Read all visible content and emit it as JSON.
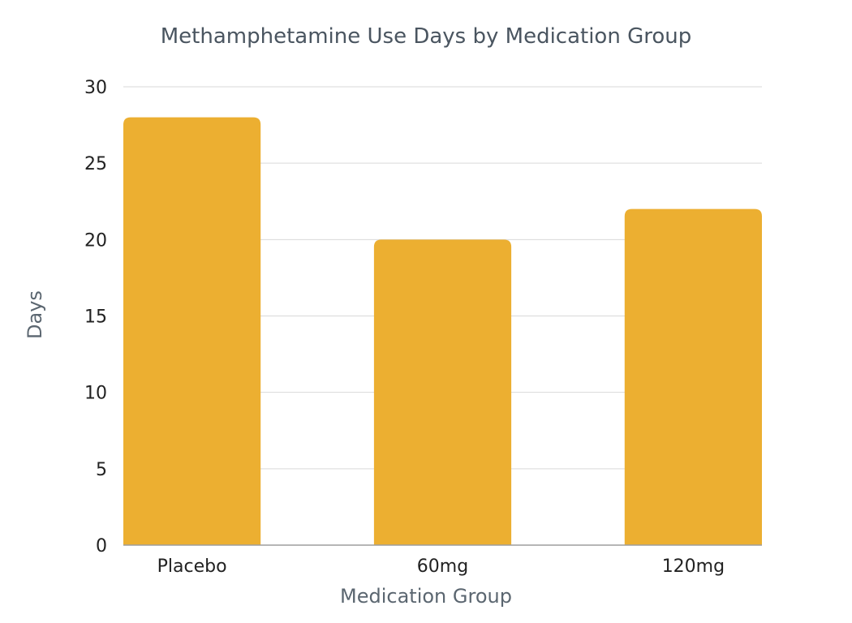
{
  "chart_data": {
    "type": "bar",
    "title": "Methamphetamine Use Days by Medication Group",
    "xlabel": "Medication Group",
    "ylabel": "Days",
    "categories": [
      "Placebo",
      "60mg",
      "120mg"
    ],
    "values": [
      28,
      20,
      22
    ],
    "ylim": [
      0,
      30
    ],
    "yticks": [
      0,
      5,
      10,
      15,
      20,
      25,
      30
    ],
    "grid": true,
    "legend": "none",
    "colors": {
      "bar": "#ecaf31",
      "grid": "#d9d9d9",
      "axis": "#9e9e9e"
    }
  }
}
